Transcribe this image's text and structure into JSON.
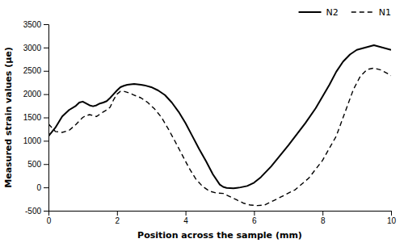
{
  "chart_data": {
    "type": "line",
    "xlabel": "Position across the sample (mm)",
    "ylabel": "Measured strain values (μe)",
    "xlim": [
      0,
      10
    ],
    "ylim": [
      -500,
      3500
    ],
    "xticks": [
      0,
      2,
      4,
      6,
      8,
      10
    ],
    "yticks": [
      -500,
      0,
      500,
      1000,
      1500,
      2000,
      2500,
      3000,
      3500
    ],
    "grid": false,
    "legend": "upper right",
    "series": [
      {
        "name": "N2",
        "color": "#000000",
        "line_style": "solid",
        "x": [
          0,
          0.2,
          0.4,
          0.6,
          0.8,
          0.9,
          1.0,
          1.1,
          1.2,
          1.3,
          1.4,
          1.5,
          1.6,
          1.7,
          1.8,
          1.9,
          2.0,
          2.1,
          2.2,
          2.3,
          2.4,
          2.5,
          2.6,
          2.7,
          2.8,
          3.0,
          3.2,
          3.4,
          3.6,
          3.8,
          4.0,
          4.2,
          4.4,
          4.6,
          4.8,
          5.0,
          5.1,
          5.2,
          5.3,
          5.4,
          5.5,
          5.6,
          5.8,
          6.0,
          6.2,
          6.5,
          7.0,
          7.5,
          7.8,
          8.0,
          8.2,
          8.4,
          8.6,
          8.8,
          9.0,
          9.5,
          10.0
        ],
        "values": [
          1100,
          1280,
          1520,
          1660,
          1750,
          1820,
          1840,
          1800,
          1760,
          1740,
          1760,
          1800,
          1820,
          1850,
          1920,
          2000,
          2080,
          2150,
          2180,
          2200,
          2210,
          2220,
          2210,
          2200,
          2190,
          2150,
          2080,
          1980,
          1820,
          1620,
          1380,
          1100,
          820,
          560,
          280,
          60,
          10,
          -10,
          -15,
          -20,
          -10,
          0,
          30,
          100,
          220,
          450,
          900,
          1380,
          1700,
          1950,
          2200,
          2480,
          2700,
          2850,
          2950,
          3050,
          2950
        ]
      },
      {
        "name": "N1",
        "color": "#000000",
        "line_style": "dashed",
        "x": [
          0,
          0.2,
          0.4,
          0.6,
          0.8,
          1.0,
          1.1,
          1.2,
          1.3,
          1.4,
          1.5,
          1.6,
          1.7,
          1.8,
          1.9,
          2.0,
          2.1,
          2.2,
          2.3,
          2.4,
          2.5,
          2.7,
          2.9,
          3.1,
          3.3,
          3.5,
          3.7,
          3.9,
          4.1,
          4.3,
          4.5,
          4.7,
          4.9,
          5.1,
          5.3,
          5.5,
          5.7,
          5.9,
          6.1,
          6.3,
          6.5,
          6.8,
          7.2,
          7.6,
          8.0,
          8.4,
          8.7,
          8.9,
          9.1,
          9.3,
          9.5,
          9.7,
          10.0
        ],
        "values": [
          1360,
          1200,
          1180,
          1220,
          1350,
          1500,
          1540,
          1560,
          1540,
          1520,
          1570,
          1620,
          1660,
          1720,
          1880,
          2000,
          2060,
          2060,
          2040,
          2010,
          1980,
          1920,
          1820,
          1680,
          1500,
          1250,
          980,
          700,
          420,
          180,
          20,
          -80,
          -120,
          -130,
          -200,
          -270,
          -340,
          -380,
          -390,
          -380,
          -310,
          -200,
          -50,
          200,
          580,
          1100,
          1700,
          2100,
          2380,
          2530,
          2560,
          2520,
          2400
        ]
      }
    ]
  }
}
